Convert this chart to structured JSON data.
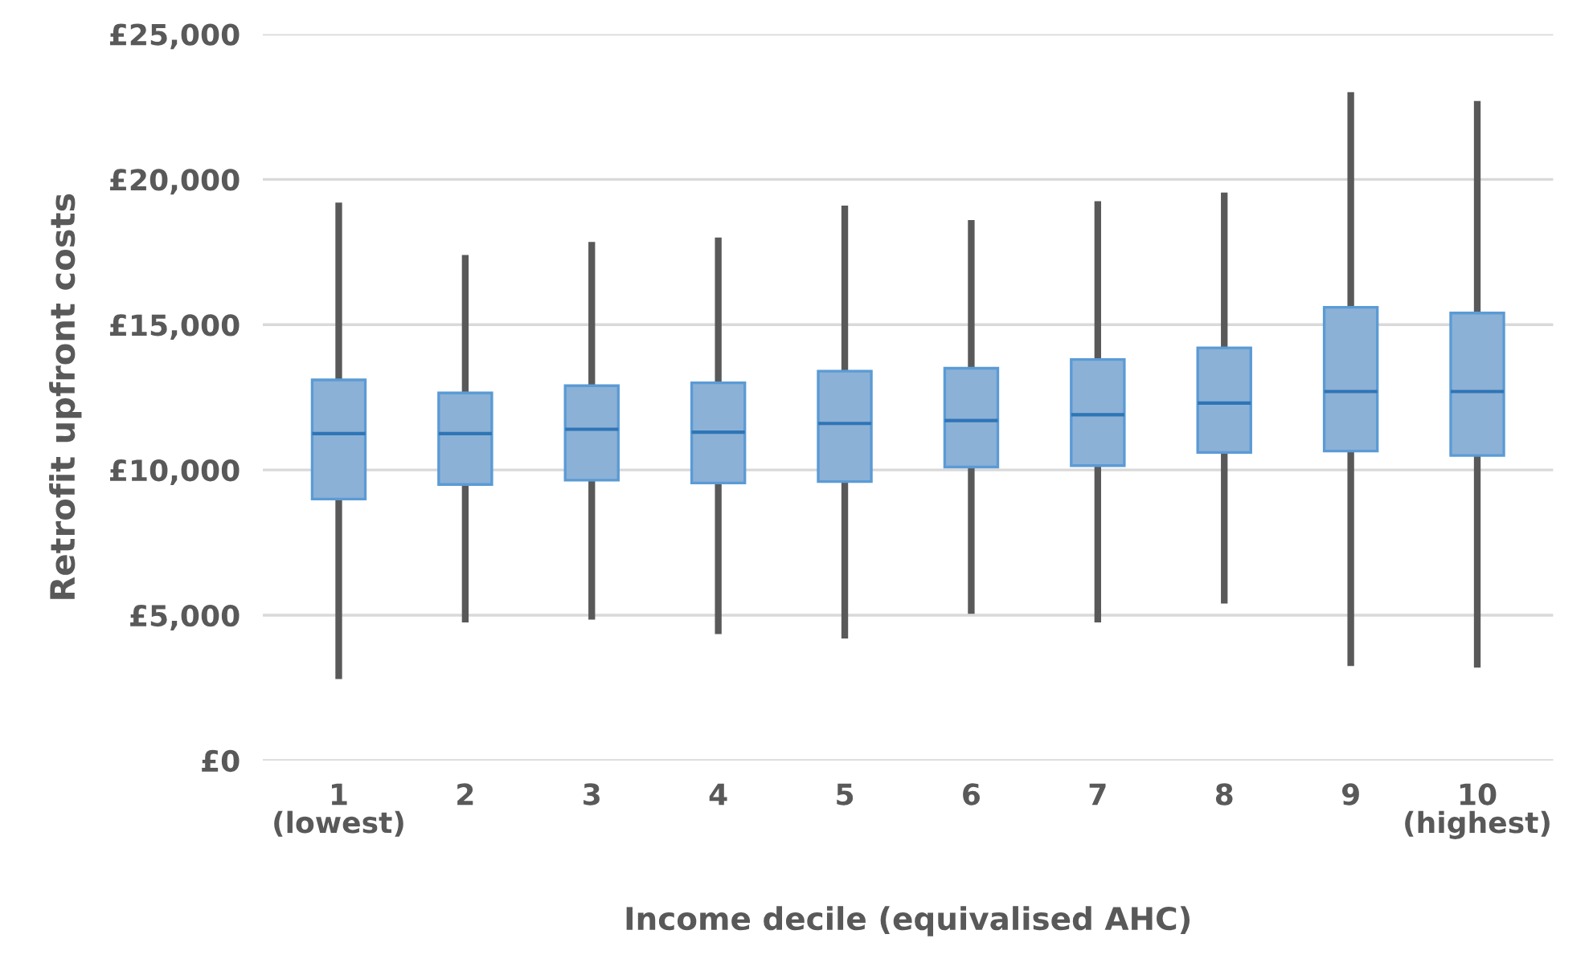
{
  "chart_data": {
    "type": "box",
    "xlabel": "Income decile (equivalised AHC)",
    "ylabel": "Retrofit upfront costs",
    "categories": [
      "1\n(lowest)",
      "2",
      "3",
      "4",
      "5",
      "6",
      "7",
      "8",
      "9",
      "10\n(highest)"
    ],
    "color": "#8cb1d6",
    "boxes": [
      {
        "low": 2800,
        "q1": 9000,
        "median": 11250,
        "q3": 13100,
        "high": 19200
      },
      {
        "low": 4750,
        "q1": 9500,
        "median": 11250,
        "q3": 12650,
        "high": 17400
      },
      {
        "low": 4850,
        "q1": 9650,
        "median": 11400,
        "q3": 12900,
        "high": 17850
      },
      {
        "low": 4350,
        "q1": 9550,
        "median": 11300,
        "q3": 13000,
        "high": 18000
      },
      {
        "low": 4200,
        "q1": 9600,
        "median": 11600,
        "q3": 13400,
        "high": 19100
      },
      {
        "low": 5050,
        "q1": 10100,
        "median": 11700,
        "q3": 13500,
        "high": 18600
      },
      {
        "low": 4750,
        "q1": 10150,
        "median": 11900,
        "q3": 13800,
        "high": 19250
      },
      {
        "low": 5400,
        "q1": 10600,
        "median": 12300,
        "q3": 14200,
        "high": 19550
      },
      {
        "low": 3250,
        "q1": 10650,
        "median": 12700,
        "q3": 15600,
        "high": 23000
      },
      {
        "low": 3200,
        "q1": 10500,
        "median": 12700,
        "q3": 15400,
        "high": 22700
      }
    ],
    "ylim": [
      0,
      25000
    ],
    "yticks": [
      {
        "value": 0,
        "label": "£0"
      },
      {
        "value": 5000,
        "label": "£5,000"
      },
      {
        "value": 10000,
        "label": "£10,000"
      },
      {
        "value": 15000,
        "label": "£15,000"
      },
      {
        "value": 20000,
        "label": "£20,000"
      },
      {
        "value": 25000,
        "label": "£25,000"
      }
    ],
    "grid": "y",
    "legend": false
  }
}
